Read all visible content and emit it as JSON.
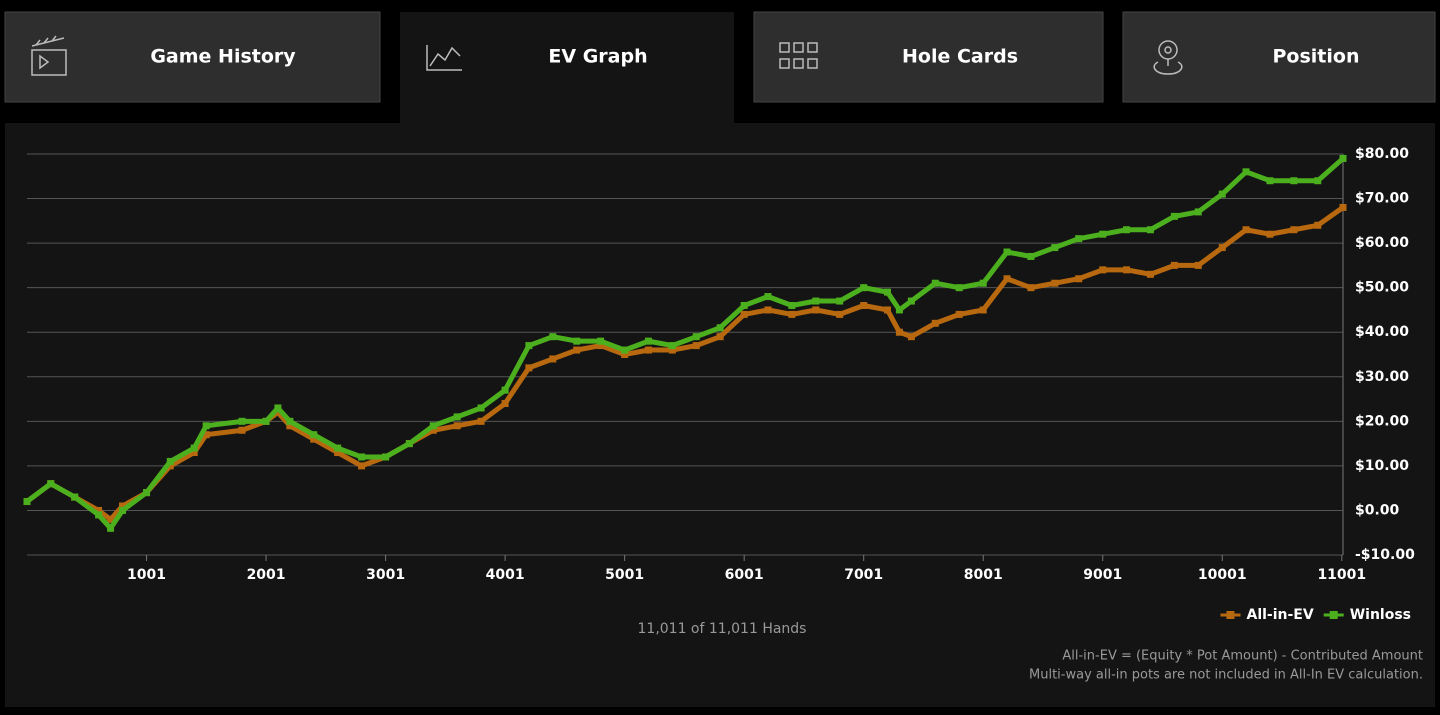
{
  "tabs": [
    "Game History",
    "EV Graph",
    "Hole Cards",
    "Position"
  ],
  "active_tab": "EV Graph",
  "chart_data": {
    "type": "line",
    "x": [
      1,
      200,
      400,
      600,
      700,
      800,
      1001,
      1200,
      1400,
      1500,
      1800,
      2001,
      2100,
      2200,
      2400,
      2600,
      2800,
      3001,
      3200,
      3400,
      3600,
      3800,
      4001,
      4200,
      4400,
      4600,
      4800,
      5001,
      5200,
      5400,
      5600,
      5800,
      6001,
      6200,
      6400,
      6600,
      6800,
      7001,
      7200,
      7300,
      7400,
      7600,
      7800,
      8001,
      8200,
      8400,
      8600,
      8800,
      9001,
      9200,
      9400,
      9600,
      9800,
      10001,
      10200,
      10400,
      10600,
      10800,
      11011
    ],
    "series": [
      {
        "name": "All-in-EV",
        "color": "#b8690f",
        "values": [
          2,
          6,
          3,
          0,
          -2,
          1,
          4,
          10,
          13,
          17,
          18,
          20,
          22,
          19,
          16,
          13,
          10,
          12,
          15,
          18,
          19,
          20,
          24,
          32,
          34,
          36,
          37,
          35,
          36,
          36,
          37,
          39,
          44,
          45,
          44,
          45,
          44,
          46,
          45,
          40,
          39,
          42,
          44,
          45,
          52,
          50,
          51,
          52,
          54,
          54,
          53,
          55,
          55,
          59,
          63,
          62,
          63,
          64,
          68
        ]
      },
      {
        "name": "Winloss",
        "color": "#4caf1e",
        "values": [
          2,
          6,
          3,
          -1,
          -4,
          0,
          4,
          11,
          14,
          19,
          20,
          20,
          23,
          20,
          17,
          14,
          12,
          12,
          15,
          19,
          21,
          23,
          27,
          37,
          39,
          38,
          38,
          36,
          38,
          37,
          39,
          41,
          46,
          48,
          46,
          47,
          47,
          50,
          49,
          45,
          47,
          51,
          50,
          51,
          58,
          57,
          59,
          61,
          62,
          63,
          63,
          66,
          67,
          71,
          76,
          74,
          74,
          74,
          79
        ]
      }
    ],
    "xlim": [
      1,
      11011
    ],
    "xticks": [
      1001,
      2001,
      3001,
      4001,
      5001,
      6001,
      7001,
      8001,
      9001,
      10001,
      11001
    ],
    "ylim": [
      -10,
      80
    ],
    "yticks": [
      {
        "value": -10,
        "label": "-$10.00"
      },
      {
        "value": 0,
        "label": "$0.00"
      },
      {
        "value": 10,
        "label": "$10.00"
      },
      {
        "value": 20,
        "label": "$20.00"
      },
      {
        "value": 30,
        "label": "$30.00"
      },
      {
        "value": 40,
        "label": "$40.00"
      },
      {
        "value": 50,
        "label": "$50.00"
      },
      {
        "value": 60,
        "label": "$60.00"
      },
      {
        "value": 70,
        "label": "$70.00"
      },
      {
        "value": 80,
        "label": "$80.00"
      }
    ],
    "grid": true,
    "legend": "bottom-right",
    "hands_note": "11,011 of 11,011 Hands",
    "footnotes": [
      "All-in-EV = (Equity * Pot Amount) - Contributed Amount",
      "Multi-way all-in pots are not included in All-In EV calculation."
    ]
  }
}
